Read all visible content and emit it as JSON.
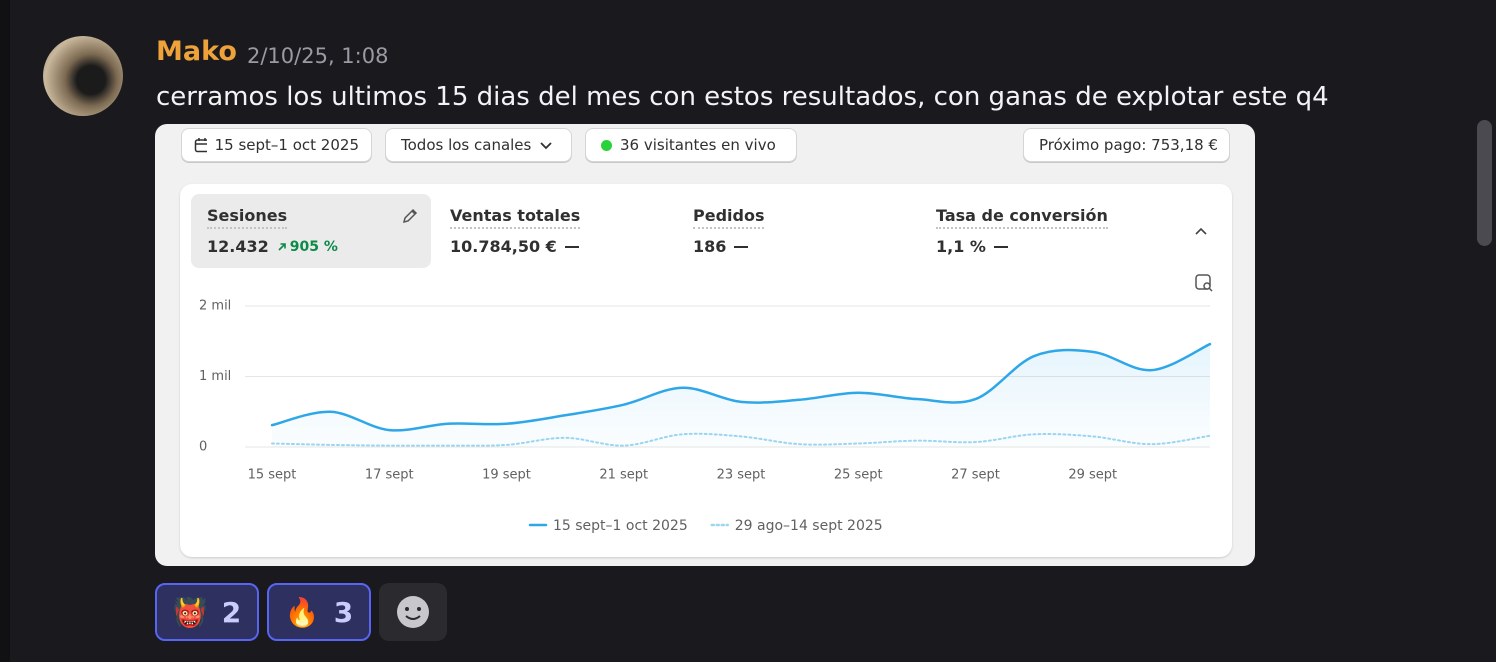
{
  "message": {
    "author": "Mako",
    "timestamp": "2/10/25, 1:08",
    "text": "cerramos los ultimos 15 dias del mes con estos resultados, con ganas de explotar este q4"
  },
  "toolbar": {
    "date_range": "15 sept–1 oct 2025",
    "channels": "Todos los canales",
    "live": "36 visitantes en vivo",
    "payout": "Próximo pago: 753,18 €"
  },
  "metrics": [
    {
      "label": "Sesiones",
      "value": "12.432",
      "change": "905 %"
    },
    {
      "label": "Ventas totales",
      "value": "10.784,50 €"
    },
    {
      "label": "Pedidos",
      "value": "186"
    },
    {
      "label": "Tasa de conversión",
      "value": "1,1 %"
    }
  ],
  "chart_data": {
    "type": "line",
    "categories": [
      "15 sept",
      null,
      "17 sept",
      null,
      "19 sept",
      null,
      "21 sept",
      null,
      "23 sept",
      null,
      "25 sept",
      null,
      "27 sept",
      null,
      "29 sept",
      null,
      null
    ],
    "series": [
      {
        "name": "15 sept–1 oct 2025",
        "color": "#2ea7e8",
        "values": [
          310,
          500,
          240,
          330,
          330,
          450,
          600,
          840,
          640,
          670,
          770,
          680,
          680,
          1290,
          1350,
          1090,
          1460
        ]
      },
      {
        "name": "29 ago–14 sept 2025",
        "color": "#9ed6f0",
        "values": [
          50,
          30,
          20,
          20,
          30,
          130,
          20,
          180,
          150,
          40,
          50,
          90,
          70,
          180,
          150,
          40,
          160
        ]
      }
    ],
    "ylim": [
      0,
      2000
    ],
    "yticks": [
      0,
      {
        "value": 1000,
        "label": "1 mil"
      },
      {
        "value": 2000,
        "label": "2 mil"
      }
    ],
    "grid": true
  },
  "reactions": [
    {
      "emoji": "👹",
      "count": 2
    },
    {
      "emoji": "🔥",
      "count": 3
    }
  ]
}
